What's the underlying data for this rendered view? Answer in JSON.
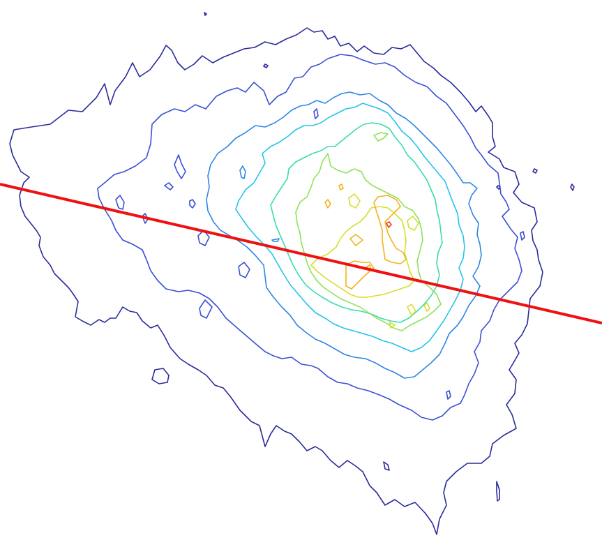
{
  "chart_data": {
    "type": "contour",
    "title": "",
    "xlabel": "",
    "ylabel": "",
    "grid": false,
    "legend": "none",
    "colormap": "jet",
    "levels": [
      {
        "level": 1,
        "color": "#2a2a9c"
      },
      {
        "level": 2,
        "color": "#3b4fd6"
      },
      {
        "level": 3,
        "color": "#2f86e6"
      },
      {
        "level": 4,
        "color": "#22c4ec"
      },
      {
        "level": 5,
        "color": "#39dcb0"
      },
      {
        "level": 6,
        "color": "#8fe25a"
      },
      {
        "level": 7,
        "color": "#d6de2c"
      },
      {
        "level": 8,
        "color": "#f3b21a"
      },
      {
        "level": 9,
        "color": "#ef3f1e"
      }
    ],
    "trend_line": {
      "color": "#ee1111",
      "slope": -0.2195
    }
  }
}
